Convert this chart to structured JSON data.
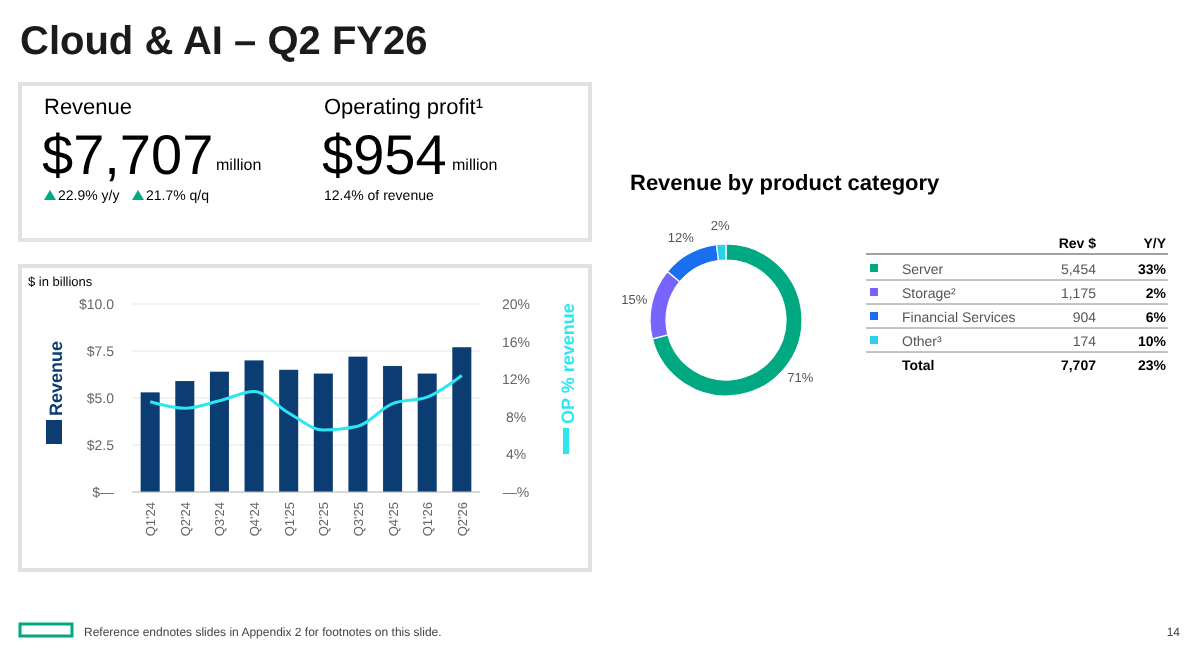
{
  "chart_data": [
    {
      "type": "other",
      "title": "Cloud & AI – Q2 FY26",
      "annotations": [
        "Revenue",
        "$7,707",
        "million",
        "22.9% y/y",
        "21.7% q/q",
        "Operating profit¹",
        "$954",
        "million",
        "12.4% of revenue",
        "Reference endnotes slides in Appendix 2 for footnotes on this slide.",
        "14"
      ]
    },
    {
      "type": "bar",
      "categories": [
        "Q1'24",
        "Q2'24",
        "Q3'24",
        "Q4'24",
        "Q1'25",
        "Q2'25",
        "Q3'25",
        "Q4'25",
        "Q1'26",
        "Q2'26"
      ],
      "series": [
        {
          "name": "Revenue",
          "color": "#0b3d73",
          "values": [
            5.3,
            5.9,
            6.4,
            7.0,
            6.5,
            6.3,
            7.2,
            6.7,
            6.3,
            7.7
          ]
        },
        {
          "name": "OP % revenue",
          "type": "line",
          "axis": "y2",
          "color": "#2ee6f2",
          "values": [
            9.6,
            8.9,
            9.7,
            10.7,
            8.4,
            6.6,
            7.0,
            9.4,
            10.1,
            12.4
          ]
        }
      ],
      "ylim": [
        0,
        10
      ],
      "yticks": [
        {
          "value": 0,
          "label": "$—"
        },
        {
          "value": 2.5,
          "label": "$2.5"
        },
        {
          "value": 5,
          "label": "$5.0"
        },
        {
          "value": 7.5,
          "label": "$7.5"
        },
        {
          "value": 10,
          "label": "$10.0"
        }
      ],
      "y2lim": [
        0,
        20
      ],
      "y2ticks": [
        {
          "value": 0,
          "label": "—%"
        },
        {
          "value": 4,
          "label": "4%"
        },
        {
          "value": 8,
          "label": "8%"
        },
        {
          "value": 12,
          "label": "12%"
        },
        {
          "value": 16,
          "label": "16%"
        },
        {
          "value": 20,
          "label": "20%"
        }
      ],
      "grid": "y",
      "legend": "left",
      "annotations": [
        "$ in billions"
      ]
    },
    {
      "type": "donut",
      "title": "Revenue by product category",
      "categories": [
        "Server",
        "Storage²",
        "Financial Services",
        "Other³"
      ],
      "values": [
        71,
        15,
        12,
        2
      ],
      "colors": [
        "#01a982",
        "#7764fc",
        "#1a6ff0",
        "#2ad2e8"
      ],
      "value_labels": [
        "71%",
        "15%",
        "12%",
        "2%"
      ],
      "legend": "right",
      "annotations": [
        "Rev $",
        "Y/Y",
        "5,454",
        "33%",
        "1,175",
        "2%",
        "904",
        "6%",
        "174",
        "10%",
        "Total",
        "7,707",
        "23%"
      ]
    }
  ]
}
